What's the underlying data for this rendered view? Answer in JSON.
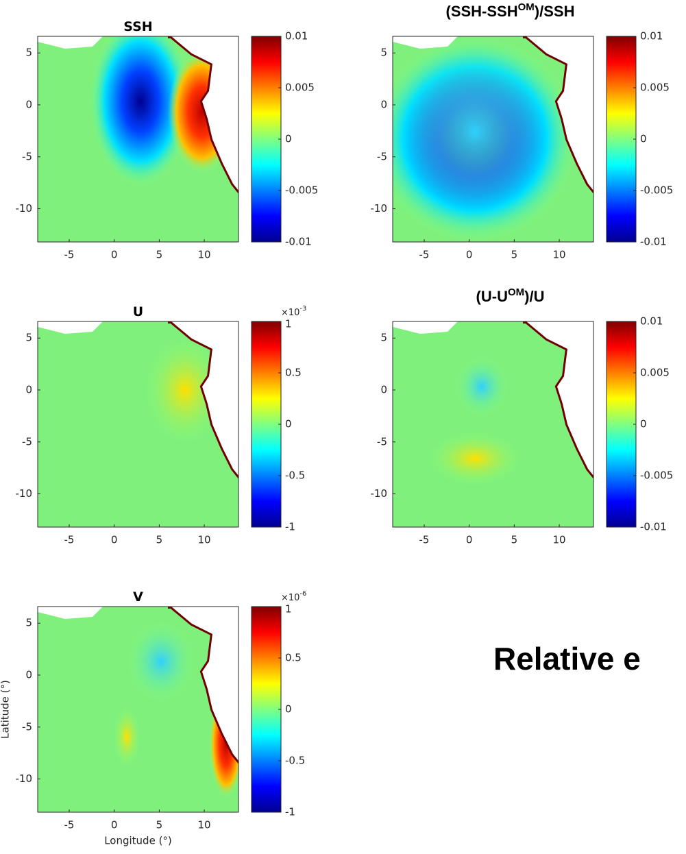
{
  "chart_data": [
    {
      "type": "heatmap",
      "title_parts": [
        "SSH"
      ],
      "colormap": "jet",
      "xlim": [
        -8.5,
        13.8
      ],
      "ylim": [
        -13.2,
        6.6
      ],
      "xticks": [
        -5,
        0,
        5,
        10
      ],
      "yticks": [
        5,
        0,
        -5,
        -10
      ],
      "clim": [
        -0.01,
        0.01
      ],
      "cticks": [
        0.01,
        0.005,
        0,
        -0.005,
        -0.01
      ]
    },
    {
      "type": "heatmap",
      "title_parts": [
        "(SSH-SSH",
        "OM",
        ")/SSH"
      ],
      "colormap": "jet",
      "xlim": [
        -8.5,
        13.8
      ],
      "ylim": [
        -13.2,
        6.6
      ],
      "xticks": [
        -5,
        0,
        5,
        10
      ],
      "yticks": [
        5,
        0,
        -5,
        -10
      ],
      "clim": [
        -0.01,
        0.01
      ],
      "cticks": [
        0.01,
        0.005,
        0,
        -0.005,
        -0.01
      ]
    },
    {
      "type": "heatmap",
      "title_parts": [
        "U"
      ],
      "colormap": "jet",
      "xlim": [
        -8.5,
        13.8
      ],
      "ylim": [
        -13.2,
        6.6
      ],
      "xticks": [
        -5,
        0,
        5,
        10
      ],
      "yticks": [
        5,
        0,
        -5,
        -10
      ],
      "clim": [
        -1,
        1
      ],
      "cticks": [
        1,
        0.5,
        0,
        -0.5,
        -1
      ],
      "colorbar_multiplier": {
        "base": "×10",
        "exponent": "-3"
      }
    },
    {
      "type": "heatmap",
      "title_parts": [
        "(U-U",
        "OM",
        ")/U"
      ],
      "colormap": "jet",
      "xlim": [
        -8.5,
        13.8
      ],
      "ylim": [
        -13.2,
        6.6
      ],
      "xticks": [
        -5,
        0,
        5,
        10
      ],
      "yticks": [
        5,
        0,
        -5,
        -10
      ],
      "clim": [
        -0.01,
        0.01
      ],
      "cticks": [
        0.01,
        0.005,
        0,
        -0.005,
        -0.01
      ]
    },
    {
      "type": "heatmap",
      "title_parts": [
        "V"
      ],
      "colormap": "jet",
      "xlabel": "Longitude (°)",
      "ylabel": "Latitude (°)",
      "xlim": [
        -8.5,
        13.8
      ],
      "ylim": [
        -13.2,
        6.6
      ],
      "xticks": [
        -5,
        0,
        5,
        10
      ],
      "yticks": [
        5,
        0,
        -5,
        -10
      ],
      "clim": [
        -1,
        1
      ],
      "cticks": [
        1,
        0.5,
        0,
        -0.5,
        -1
      ],
      "colorbar_multiplier": {
        "base": "×10",
        "exponent": "-6"
      }
    }
  ],
  "slide_text": "Relative e"
}
